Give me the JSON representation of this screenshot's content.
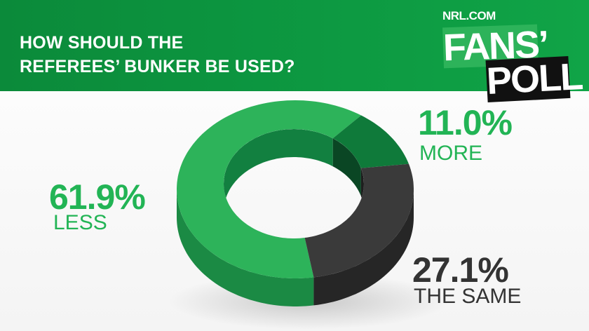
{
  "header": {
    "title_line1": "HOW SHOULD THE",
    "title_line2": "REFEREES’ BUNKER BE USED?",
    "logo": {
      "site": "NRL.COM",
      "word1": "FANS’",
      "word2": "POLL"
    }
  },
  "colors": {
    "header_green": "#0b8a3a",
    "light_green": "#2db35a",
    "dark_green": "#0f7a3a",
    "gray": "#3a3a3a",
    "label_green": "#22b455",
    "label_gray": "#333333"
  },
  "chart_data": {
    "type": "pie",
    "style": "3d-donut",
    "title": "HOW SHOULD THE REFEREES’ BUNKER BE USED?",
    "slices": [
      {
        "label": "LESS",
        "value": 61.9,
        "display": "61.9%",
        "color": "#2db35a"
      },
      {
        "label": "MORE",
        "value": 11.0,
        "display": "11.0%",
        "color": "#0f7a3a"
      },
      {
        "label": "THE SAME",
        "value": 27.1,
        "display": "27.1%",
        "color": "#3a3a3a"
      }
    ]
  }
}
